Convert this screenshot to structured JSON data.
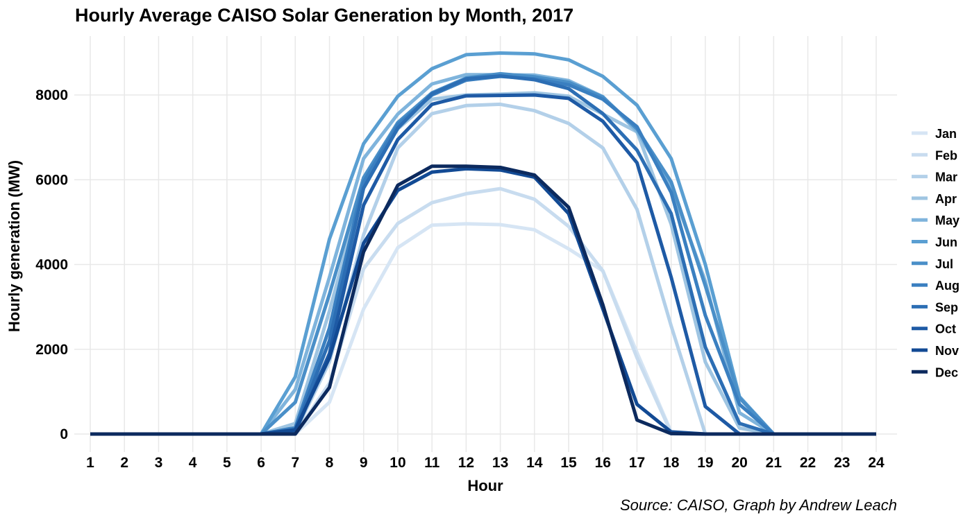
{
  "chart_data": {
    "type": "line",
    "title": "Hourly Average CAISO Solar Generation by Month,  2017",
    "xlabel": "Hour",
    "ylabel": "Hourly generation (MW)",
    "caption": "Source: CAISO, Graph by Andrew Leach",
    "x": [
      1,
      2,
      3,
      4,
      5,
      6,
      7,
      8,
      9,
      10,
      11,
      12,
      13,
      14,
      15,
      16,
      17,
      18,
      19,
      20,
      21,
      22,
      23,
      24
    ],
    "xlim": [
      1,
      24
    ],
    "ylim": [
      0,
      9000
    ],
    "yticks": [
      0,
      2000,
      4000,
      6000,
      8000
    ],
    "grid": true,
    "legend_position": "right",
    "series": [
      {
        "name": "Jan",
        "color": "#d6e5f4",
        "values": [
          0,
          0,
          0,
          0,
          0,
          0,
          0,
          750,
          2950,
          4400,
          4930,
          4960,
          4940,
          4820,
          4370,
          3850,
          1920,
          50,
          0,
          0,
          0,
          0,
          0,
          0
        ]
      },
      {
        "name": "Feb",
        "color": "#c8dcef",
        "values": [
          0,
          0,
          0,
          0,
          0,
          0,
          0,
          1200,
          3900,
          4970,
          5460,
          5670,
          5790,
          5540,
          4900,
          3850,
          1800,
          30,
          0,
          0,
          0,
          0,
          0,
          0
        ]
      },
      {
        "name": "Mar",
        "color": "#b3d0e9",
        "values": [
          0,
          0,
          0,
          0,
          0,
          0,
          50,
          1700,
          4700,
          6750,
          7560,
          7750,
          7780,
          7630,
          7330,
          6750,
          5300,
          2550,
          0,
          0,
          0,
          0,
          0,
          0
        ]
      },
      {
        "name": "Apr",
        "color": "#9fc5e2",
        "values": [
          0,
          0,
          0,
          0,
          0,
          0,
          250,
          2900,
          5900,
          7200,
          7900,
          8000,
          8020,
          8050,
          7970,
          7550,
          7130,
          4950,
          1700,
          140,
          0,
          0,
          0,
          0
        ]
      },
      {
        "name": "May",
        "color": "#7fb4dc",
        "values": [
          0,
          0,
          0,
          0,
          0,
          0,
          1050,
          3700,
          6500,
          7550,
          8260,
          8480,
          8480,
          8470,
          8340,
          7960,
          7140,
          5830,
          3600,
          500,
          0,
          0,
          0,
          0
        ]
      },
      {
        "name": "Jun",
        "color": "#5a9fd2",
        "values": [
          0,
          0,
          0,
          0,
          0,
          0,
          1350,
          4600,
          6850,
          7970,
          8620,
          8950,
          8990,
          8970,
          8830,
          8440,
          7760,
          6500,
          4000,
          880,
          0,
          0,
          0,
          0
        ]
      },
      {
        "name": "Jul",
        "color": "#4a8fc8",
        "values": [
          0,
          0,
          0,
          0,
          0,
          0,
          750,
          3300,
          6050,
          7350,
          8050,
          8400,
          8500,
          8430,
          8300,
          7950,
          7200,
          5950,
          3500,
          850,
          0,
          0,
          0,
          0
        ]
      },
      {
        "name": "Aug",
        "color": "#3a7fc0",
        "values": [
          0,
          0,
          0,
          0,
          0,
          0,
          150,
          2500,
          5950,
          7300,
          8000,
          8350,
          8440,
          8380,
          8240,
          7900,
          7250,
          5700,
          2800,
          700,
          0,
          0,
          0,
          0
        ]
      },
      {
        "name": "Sep",
        "color": "#2c6eb4",
        "values": [
          0,
          0,
          0,
          0,
          0,
          0,
          100,
          2200,
          5800,
          7220,
          8030,
          8380,
          8450,
          8360,
          8150,
          7560,
          6700,
          5200,
          2050,
          250,
          0,
          0,
          0,
          0
        ]
      },
      {
        "name": "Oct",
        "color": "#1e5aa5",
        "values": [
          0,
          0,
          0,
          0,
          0,
          0,
          50,
          1900,
          5400,
          6950,
          7780,
          7980,
          7990,
          8000,
          7920,
          7380,
          6400,
          3700,
          650,
          0,
          0,
          0,
          0,
          0
        ]
      },
      {
        "name": "Nov",
        "color": "#124a94",
        "values": [
          0,
          0,
          0,
          0,
          0,
          0,
          100,
          1800,
          4500,
          5750,
          6180,
          6260,
          6230,
          6060,
          5200,
          2950,
          700,
          50,
          0,
          0,
          0,
          0,
          0,
          0
        ]
      },
      {
        "name": "Dec",
        "color": "#0c2a5e",
        "values": [
          0,
          0,
          0,
          0,
          0,
          0,
          0,
          1100,
          4300,
          5870,
          6320,
          6320,
          6290,
          6110,
          5350,
          3050,
          330,
          10,
          0,
          0,
          0,
          0,
          0,
          0
        ]
      }
    ]
  }
}
